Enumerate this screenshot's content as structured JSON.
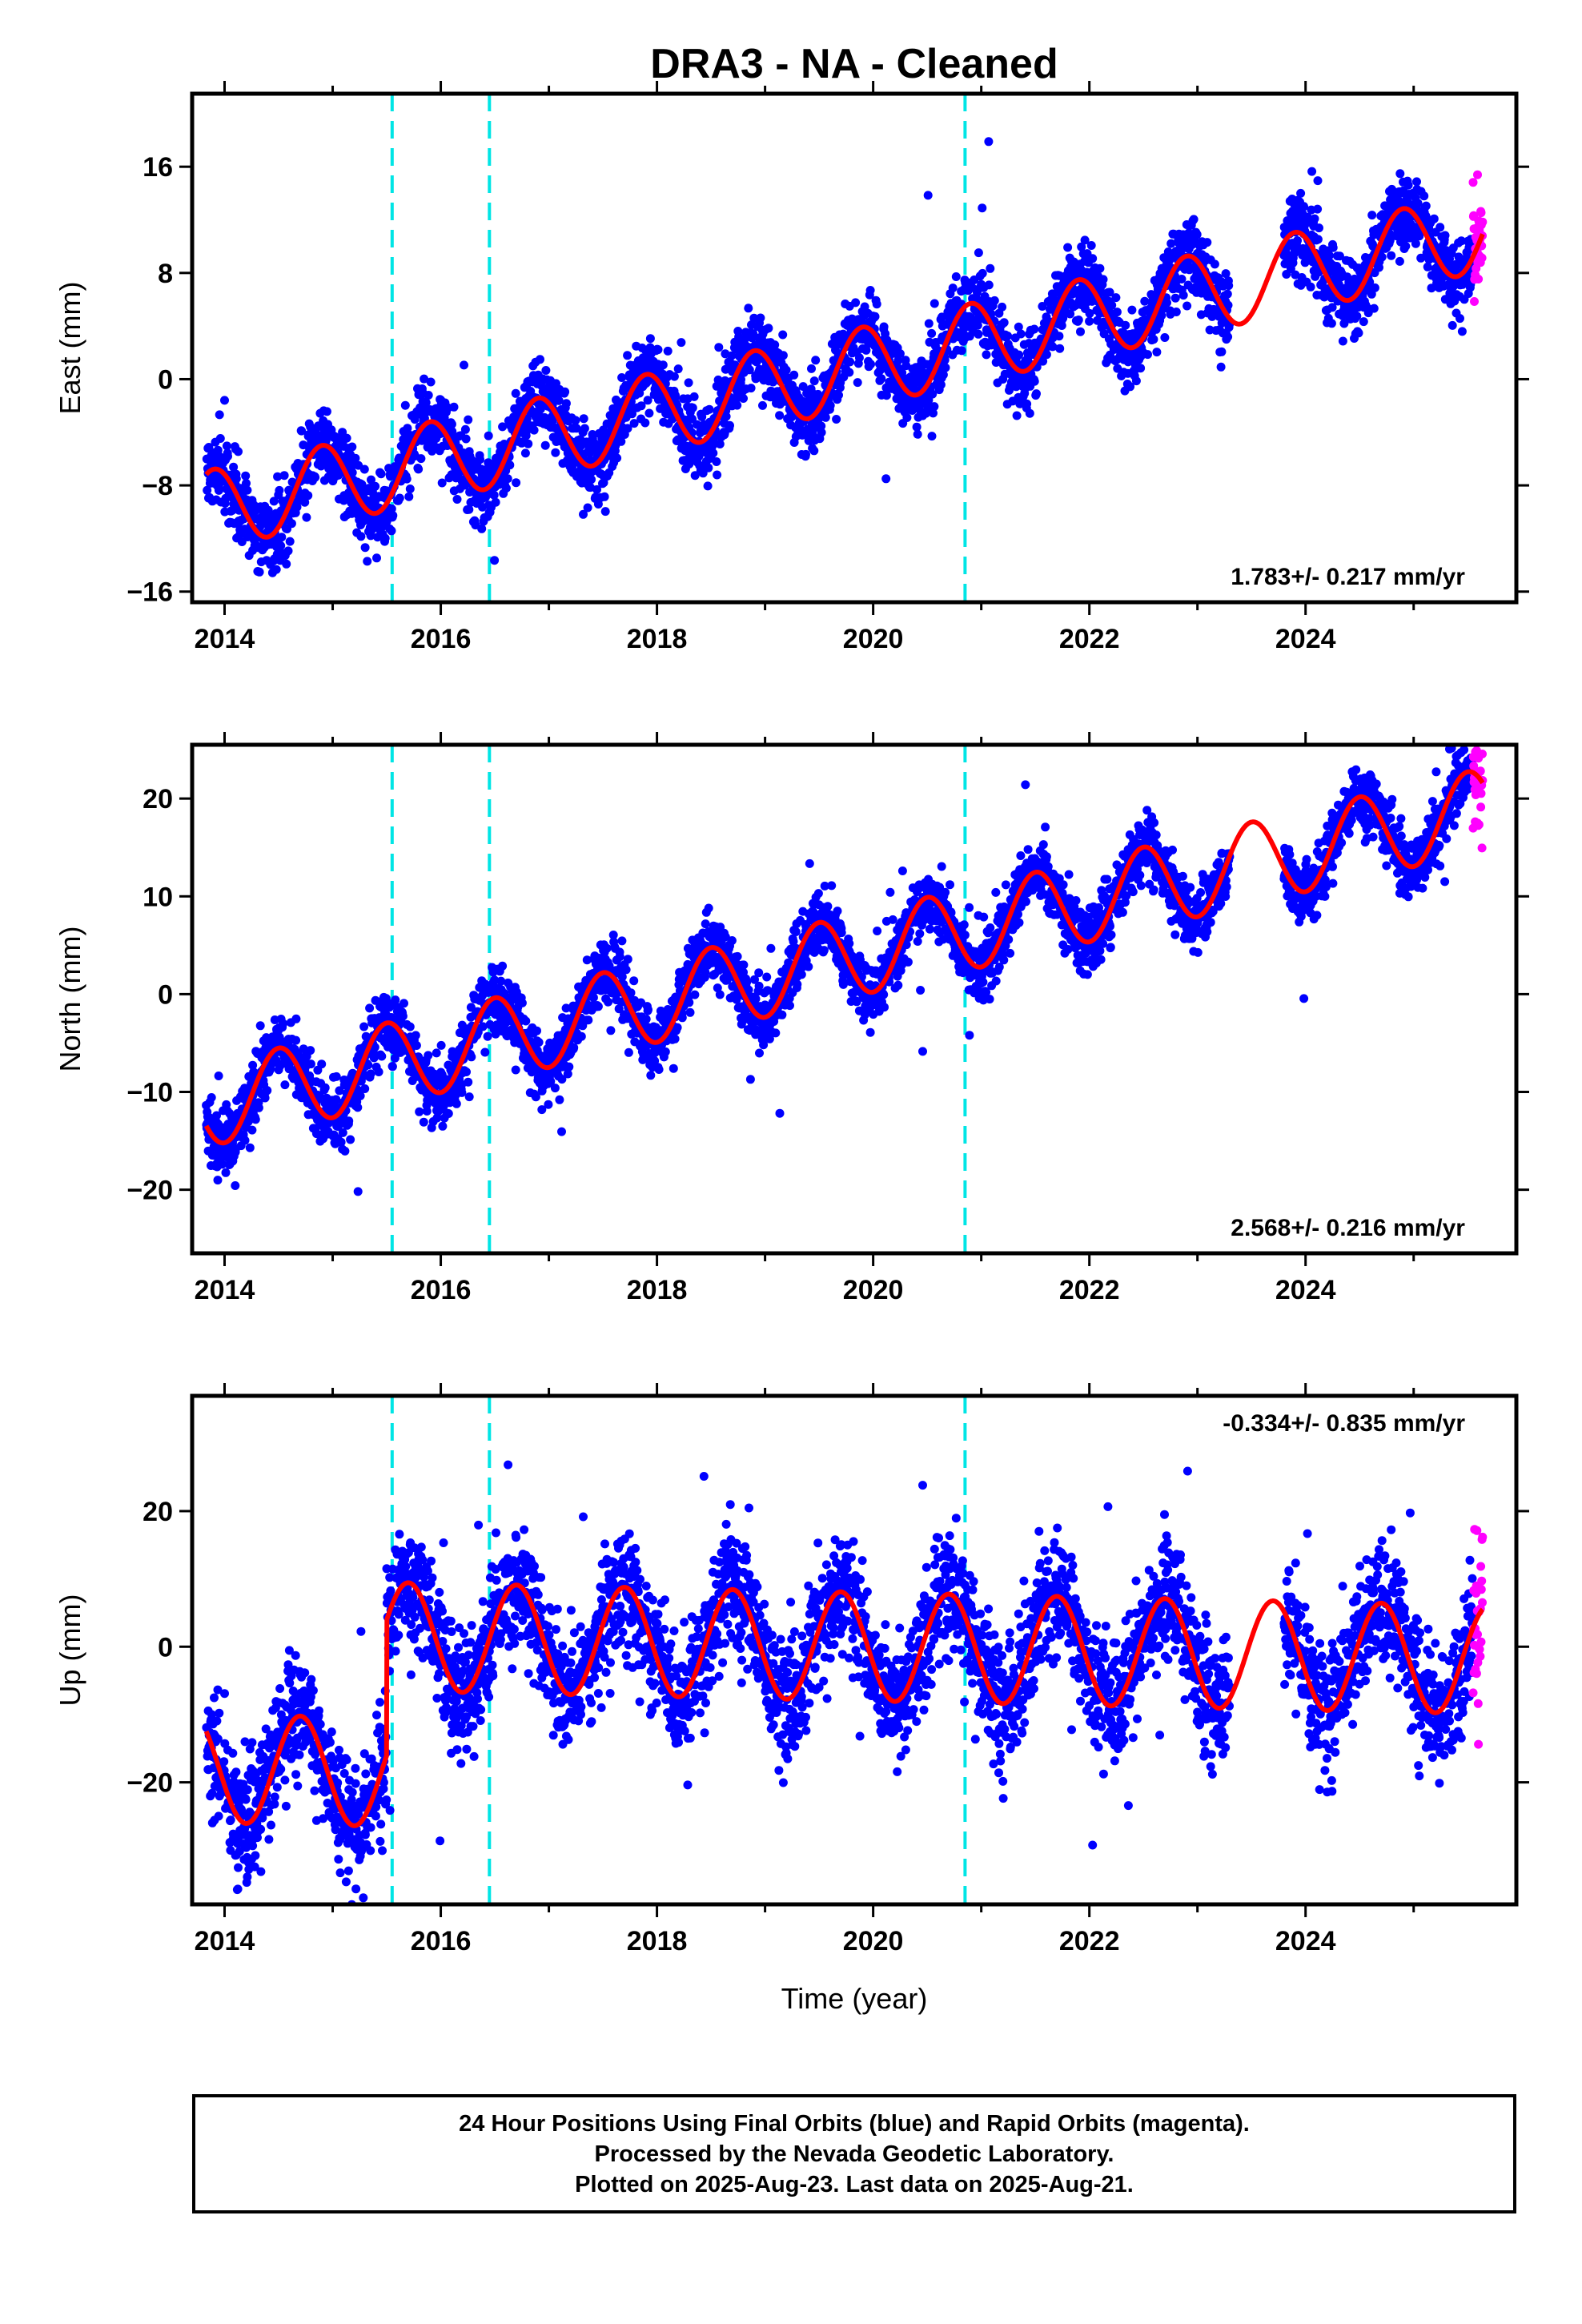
{
  "title": "DRA3  - NA - Cleaned",
  "x_axis_label": "Time (year)",
  "footer": {
    "line1": "24 Hour Positions Using Final Orbits (blue) and Rapid Orbits (magenta).",
    "line2": "Processed by the Nevada Geodetic Laboratory.",
    "line3": "Plotted on 2025-Aug-23. Last data on 2025-Aug-21."
  },
  "colors": {
    "final_orbits": "#0000ff",
    "rapid_orbits": "#ff00ff",
    "model_fit": "#ff0000",
    "equipment_change": "#00e5e5"
  },
  "chart_data": [
    {
      "type": "scatter",
      "name": "East",
      "ylabel": "East (mm)",
      "xlim": [
        2013.7,
        2025.95
      ],
      "ylim": [
        -16.8,
        21.5
      ],
      "yticks": [
        -16,
        -8,
        0,
        8,
        16
      ],
      "xticks": [
        2014,
        2016,
        2018,
        2020,
        2022,
        2024
      ],
      "rate_text": "1.783+/- 0.217 mm/yr",
      "rate_position": "bottom-right",
      "grid": false,
      "model": {
        "intercept_2014": -9.6,
        "slope_per_year": 1.783,
        "annual_amplitude": 3.0,
        "peak_phase_year": 0.9,
        "offset_at_2015_5": 0.0
      },
      "scatter_sd": 1.4,
      "final_orbits_range": [
        2013.83,
        2025.55
      ],
      "rapid_orbits_range": [
        2025.55,
        2025.64
      ],
      "data_gap": [
        2023.3,
        2023.8
      ],
      "equipment_changes": [
        2015.55,
        2016.45,
        2020.85
      ]
    },
    {
      "type": "scatter",
      "name": "North",
      "ylabel": "North (mm)",
      "xlim": [
        2013.7,
        2025.95
      ],
      "ylim": [
        -26.5,
        25.5
      ],
      "yticks": [
        -20,
        -10,
        0,
        10,
        20
      ],
      "xticks": [
        2014,
        2016,
        2018,
        2020,
        2022,
        2024
      ],
      "rate_text": "2.568+/- 0.216 mm/yr",
      "rate_position": "bottom-right",
      "grid": false,
      "model": {
        "intercept_2014": -11.0,
        "slope_per_year": 2.568,
        "annual_amplitude": 4.2,
        "peak_phase_year": 0.5,
        "offset_at_2015_5": 0.0
      },
      "scatter_sd": 1.6,
      "final_orbits_range": [
        2013.83,
        2025.55
      ],
      "rapid_orbits_range": [
        2025.55,
        2025.64
      ],
      "data_gap": [
        2023.3,
        2023.8
      ],
      "equipment_changes": [
        2015.55,
        2016.45,
        2020.85
      ]
    },
    {
      "type": "scatter",
      "name": "Up",
      "ylabel": "Up (mm)",
      "xlim": [
        2013.7,
        2025.95
      ],
      "ylim": [
        -38,
        37
      ],
      "yticks": [
        -20,
        0,
        20
      ],
      "xticks": [
        2014,
        2016,
        2018,
        2020,
        2022,
        2024
      ],
      "rate_text": "-0.334+/- 0.835 mm/yr",
      "rate_position": "top-right",
      "grid": false,
      "model": {
        "intercept_2014": -18.0,
        "slope_per_year": -0.334,
        "annual_amplitude": 8.0,
        "peak_phase_year": 0.7,
        "offset_at_2015_5": 20.0
      },
      "scatter_sd": 4.5,
      "final_orbits_range": [
        2013.83,
        2025.55
      ],
      "rapid_orbits_range": [
        2025.55,
        2025.64
      ],
      "data_gap": [
        2023.3,
        2023.8
      ],
      "equipment_changes": [
        2015.55,
        2016.45,
        2020.85
      ]
    }
  ]
}
